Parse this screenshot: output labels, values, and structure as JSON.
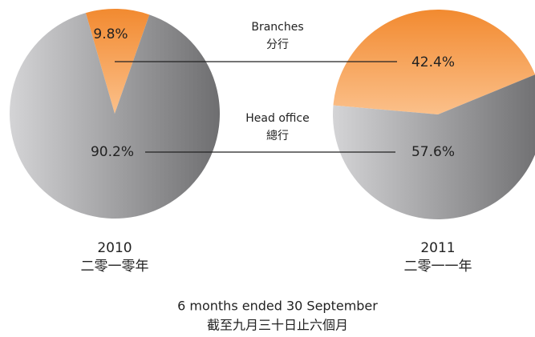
{
  "labels": {
    "branches": "Branches",
    "branches_zh": "分行",
    "head": "Head office",
    "head_zh": "總行",
    "caption": "6 months ended 30 September",
    "caption_zh": "截至九月三十日止六個月"
  },
  "chart_data": [
    {
      "type": "pie",
      "title": "2010",
      "subtitle": "二零一零年",
      "values": [
        9.8,
        90.2
      ],
      "value_labels": [
        "9.8%",
        "90.2%"
      ],
      "colors": [
        "#f28a30",
        "#a2a2a4"
      ]
    },
    {
      "type": "pie",
      "title": "2011",
      "subtitle": "二零一一年",
      "values": [
        42.4,
        57.6
      ],
      "value_labels": [
        "42.4%",
        "57.6%"
      ],
      "colors": [
        "#f28a30",
        "#a2a2a4"
      ]
    }
  ]
}
